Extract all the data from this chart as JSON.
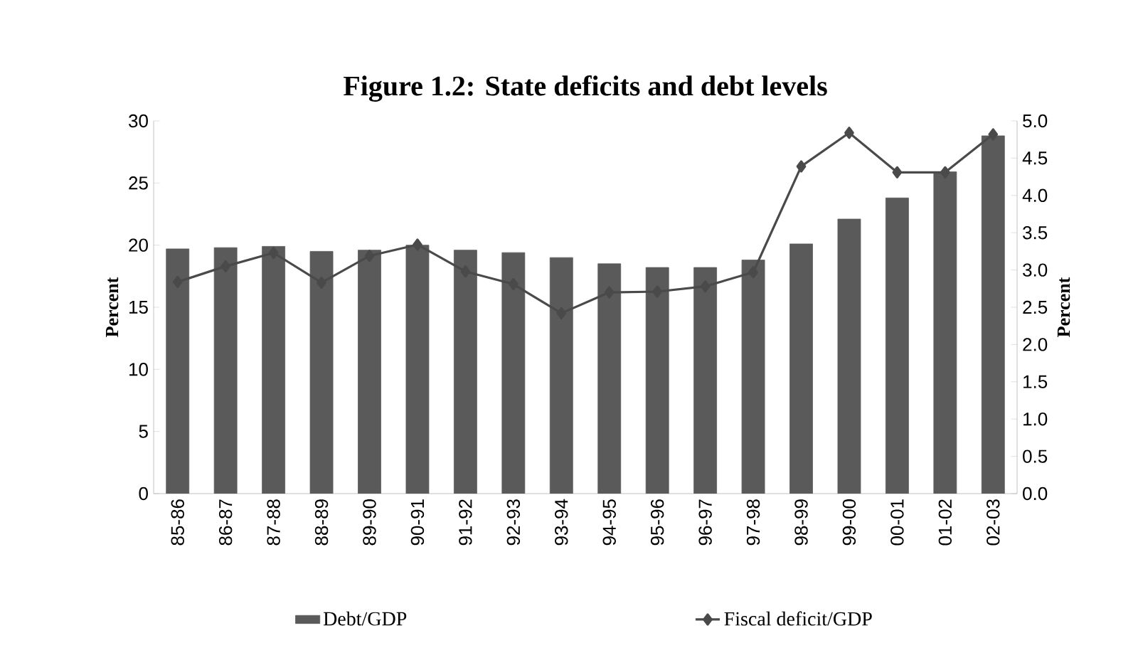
{
  "chart_data": {
    "type": "bar",
    "title": "Figure 1.2: State deficits and debt levels",
    "ylabel": "Percent",
    "y2label": "Percent",
    "categories": [
      "85-86",
      "86-87",
      "87-88",
      "88-89",
      "89-90",
      "90-91",
      "91-92",
      "92-93",
      "93-94",
      "94-95",
      "95-96",
      "96-97",
      "97-98",
      "98-99",
      "99-00",
      "00-01",
      "01-02",
      "02-03"
    ],
    "series": [
      {
        "name": "Debt/GDP",
        "color": "#5a5a5a",
        "values": [
          19.7,
          19.8,
          19.9,
          19.5,
          19.6,
          20.0,
          19.6,
          19.4,
          19.0,
          18.5,
          18.2,
          18.2,
          18.8,
          20.1,
          22.1,
          23.8,
          25.9,
          28.8
        ]
      },
      {
        "name": "Fiscal deficit/GDP",
        "type": "line",
        "axis": "y2",
        "color": "#4a4a4a",
        "marker": "diamond",
        "values": [
          2.84,
          3.05,
          3.23,
          2.83,
          3.19,
          3.34,
          2.98,
          2.81,
          2.42,
          2.7,
          2.71,
          2.78,
          2.97,
          4.39,
          4.84,
          4.31,
          4.31,
          4.82
        ]
      }
    ],
    "ylim": [
      0,
      30
    ],
    "yticks": [
      0,
      5,
      10,
      15,
      20,
      25,
      30
    ],
    "y2lim": [
      0,
      5
    ],
    "y2ticks": [
      {
        "value": 0,
        "label": "0.0"
      },
      {
        "value": 0.5,
        "label": "0.5"
      },
      {
        "value": 1,
        "label": "1.0"
      },
      {
        "value": 1.5,
        "label": "1.5"
      },
      {
        "value": 2,
        "label": "2.0"
      },
      {
        "value": 2.5,
        "label": "2.5"
      },
      {
        "value": 3,
        "label": "3.0"
      },
      {
        "value": 3.5,
        "label": "3.5"
      },
      {
        "value": 4,
        "label": "4.0"
      },
      {
        "value": 4.5,
        "label": "4.5"
      },
      {
        "value": 5,
        "label": "5.0"
      }
    ],
    "legend": "bottom"
  }
}
